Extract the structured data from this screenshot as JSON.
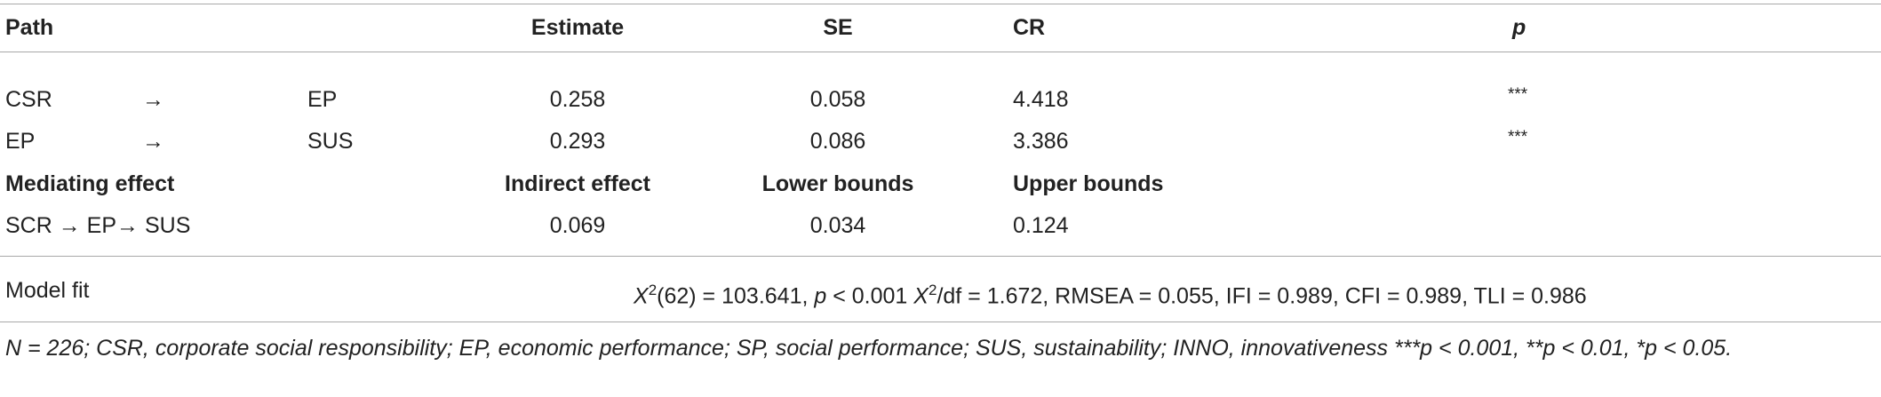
{
  "table": {
    "header": {
      "path": "Path",
      "estimate": "Estimate",
      "se": "SE",
      "cr": "CR",
      "p": "p"
    },
    "rows": [
      {
        "from": "CSR",
        "arrow": "→",
        "to": "EP",
        "estimate": "0.258",
        "se": "0.058",
        "cr": "4.418",
        "p": "***"
      },
      {
        "from": "EP",
        "arrow": "→",
        "to": "SUS",
        "estimate": "0.293",
        "se": "0.086",
        "cr": "3.386",
        "p": "***"
      }
    ],
    "mediation_header": {
      "label": "Mediating effect",
      "indirect": "Indirect effect",
      "lower": "Lower bounds",
      "upper": "Upper bounds"
    },
    "mediation_row": {
      "path": "SCR → EP→ SUS",
      "indirect": "0.069",
      "lower": "0.034",
      "upper": "0.124"
    },
    "model_fit": {
      "label": "Model fit",
      "chi_sym": "X",
      "chi_sup": "2",
      "chi_df": "(62) = 103.641, ",
      "p_sym": "p",
      "p_val": " < 0.001 ",
      "chi2_sym": "X",
      "chi2_sup": "2",
      "rest": "/df = 1.672, RMSEA = 0.055, IFI = 0.989, CFI = 0.989, TLI = 0.986"
    },
    "footnote": "N = 226; CSR, corporate social responsibility; EP, economic performance; SP, social performance; SUS, sustainability; INNO, innovativeness ***p < 0.001, **p < 0.01, *p < 0.05."
  }
}
